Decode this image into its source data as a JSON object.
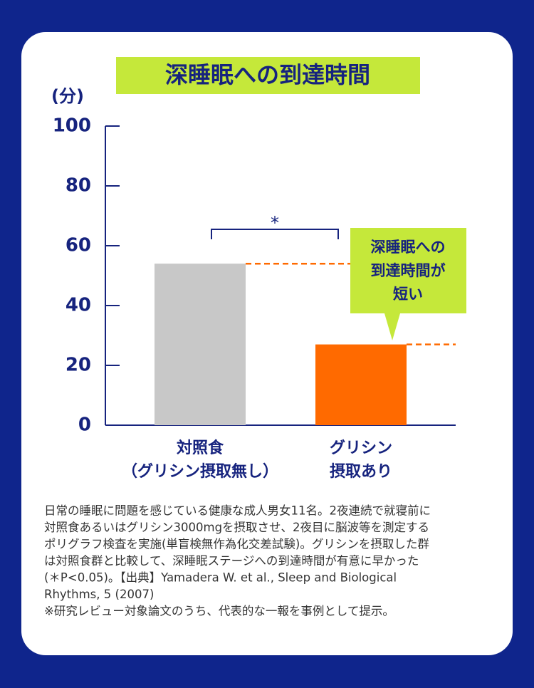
{
  "chart_data": {
    "type": "bar",
    "title": "深睡眠への到達時間",
    "y_label": "(分)",
    "categories": [
      [
        "対照食",
        "（グリシン摂取無し）"
      ],
      [
        "グリシン",
        "摂取あり"
      ]
    ],
    "values": [
      54,
      27
    ],
    "colors": [
      "#c8c8c8",
      "#ff6a00"
    ],
    "ylim": [
      0,
      100
    ],
    "yticks": [
      0,
      20,
      40,
      60,
      80,
      100
    ],
    "significance": "*",
    "callout": [
      "深睡眠への",
      "到達時間が",
      "短い"
    ],
    "note": [
      "日常の睡眠に問題を感じている健康な成人男女11名。2夜連続で就寝前に",
      "対照食あるいはグリシン3000mgを摂取させ、2夜目に脳波等を測定する",
      "ポリグラフ検査を実施(単盲検無作為化交差試験)。グリシンを摂取した群",
      "は対照食群と比較して、深睡眠ステージへの到達時間が有意に早かった",
      "(＊P<0.05)。【出典】Yamadera W. et al., Sleep and Biological",
      "Rhythms, 5 (2007)",
      "※研究レビュー対象論文のうち、代表的な一報を事例として提示。"
    ]
  }
}
